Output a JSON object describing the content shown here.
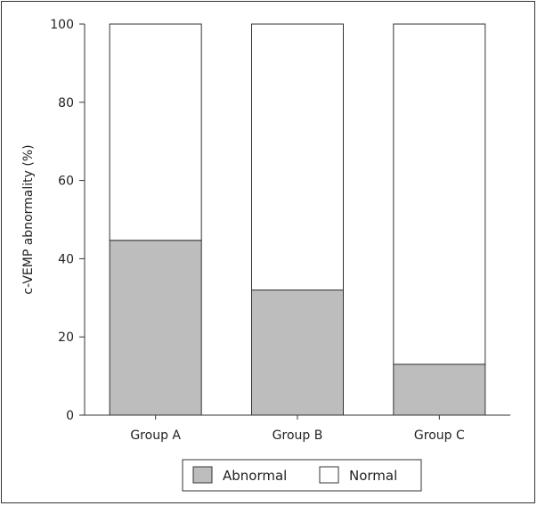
{
  "chart_data": {
    "type": "bar",
    "stacked": true,
    "categories": [
      "Group A",
      "Group B",
      "Group C"
    ],
    "series": [
      {
        "name": "Abnormal",
        "values": [
          44.7,
          32.0,
          13.0
        ],
        "color": "#bdbdbd"
      },
      {
        "name": "Normal",
        "values": [
          55.3,
          68.0,
          87.0
        ],
        "color": "#ffffff"
      }
    ],
    "title": "",
    "xlabel": "",
    "ylabel": "c-VEMP abnormality (%)",
    "ylim": [
      0,
      100
    ],
    "yticks": [
      0,
      20,
      40,
      60,
      80,
      100
    ],
    "grid": false,
    "legend_position": "bottom"
  }
}
